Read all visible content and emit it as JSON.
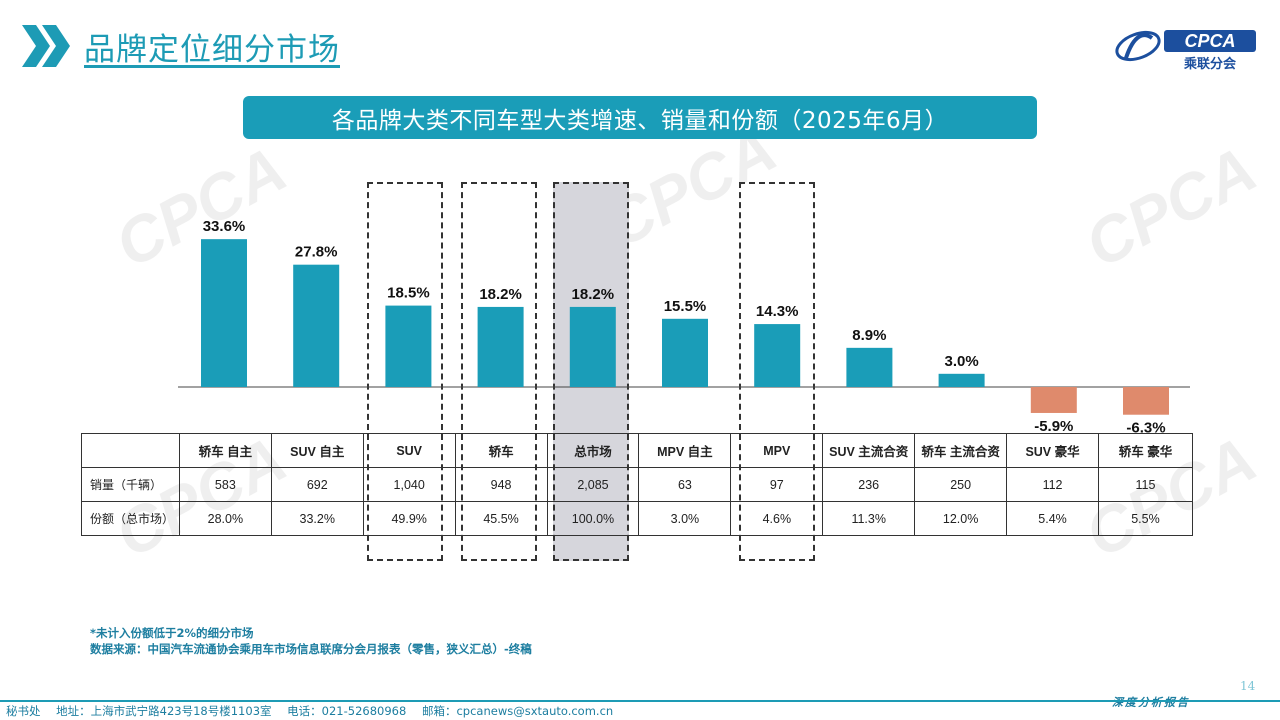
{
  "header": {
    "title": "品牌定位细分市场",
    "logo_text": "CPCA",
    "logo_sub": "乘联分会"
  },
  "banner": {
    "text": "各品牌大类不同车型大类增速、销量和份额（2025年6月）"
  },
  "chart_data": {
    "type": "bar",
    "categories": [
      "轿车 自主",
      "SUV 自主",
      "SUV",
      "轿车",
      "总市场",
      "MPV 自主",
      "MPV",
      "SUV 主流合资",
      "轿车 主流合资",
      "SUV 豪华",
      "轿车 豪华"
    ],
    "values": [
      33.6,
      27.8,
      18.5,
      18.2,
      18.2,
      15.5,
      14.3,
      8.9,
      3.0,
      -5.9,
      -6.3
    ],
    "labels": [
      "33.6%",
      "27.8%",
      "18.5%",
      "18.2%",
      "18.2%",
      "15.5%",
      "14.3%",
      "8.9%",
      "3.0%",
      "-5.9%",
      "-6.3%"
    ],
    "colors": {
      "positive": "#1a9db8",
      "negative": "#df8a6c"
    },
    "ylim": [
      -8,
      36
    ]
  },
  "table": {
    "rows": [
      {
        "label": "销量（千辆）",
        "values": [
          "583",
          "692",
          "1,040",
          "948",
          "2,085",
          "63",
          "97",
          "236",
          "250",
          "112",
          "115"
        ]
      },
      {
        "label": "份额（总市场）",
        "values": [
          "28.0%",
          "33.2%",
          "49.9%",
          "45.5%",
          "100.0%",
          "3.0%",
          "4.6%",
          "11.3%",
          "12.0%",
          "5.4%",
          "5.5%"
        ]
      }
    ]
  },
  "notes": {
    "line1": "*未计入份额低于2%的细分市场",
    "line2": "数据来源：中国汽车流通协会乘用车市场信息联席分会月报表（零售，狭义汇总）-终稿"
  },
  "footer": {
    "office": "秘书处",
    "address": "地址：上海市武宁路423号18号楼1103室",
    "phone": "电话：021-52680968",
    "email": "邮箱：cpcanews@sxtauto.com.cn",
    "report_tag": "深度分析报告",
    "page": "14"
  }
}
